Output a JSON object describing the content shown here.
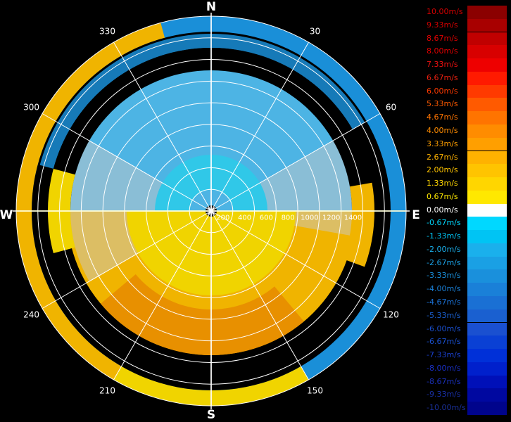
{
  "chart_data": {
    "type": "polar-heatmap",
    "title": "",
    "compass": {
      "N": "N",
      "E": "E",
      "S": "S",
      "W": "W"
    },
    "azimuth_labels": [
      "30",
      "60",
      "120",
      "150",
      "210",
      "240",
      "300",
      "330"
    ],
    "azimuth_values": [
      30,
      60,
      120,
      150,
      210,
      240,
      300,
      330
    ],
    "range_labels": [
      "200",
      "400",
      "600",
      "800",
      "1000",
      "1200",
      "1400"
    ],
    "range_values": [
      200,
      400,
      600,
      800,
      1000,
      1200,
      1400
    ],
    "range_max": 1800,
    "units": "m/s",
    "legend": {
      "labels": [
        "10.00m/s",
        "9.33m/s",
        "8.67m/s",
        "8.00m/s",
        "7.33m/s",
        "6.67m/s",
        "6.00m/s",
        "5.33m/s",
        "4.67m/s",
        "4.00m/s",
        "3.33m/s",
        "2.67m/s",
        "2.00m/s",
        "1.33m/s",
        "0.67m/s",
        "0.00m/s",
        "-0.67m/s",
        "-1.33m/s",
        "-2.00m/s",
        "-2.67m/s",
        "-3.33m/s",
        "-4.00m/s",
        "-4.67m/s",
        "-5.33m/s",
        "-6.00m/s",
        "-6.67m/s",
        "-7.33m/s",
        "-8.00m/s",
        "-8.67m/s",
        "-9.33m/s",
        "-10.00m/s"
      ],
      "colors": [
        "#8b0000",
        "#a80000",
        "#c00000",
        "#d80000",
        "#ee0000",
        "#ff1a00",
        "#ff3a00",
        "#ff5a00",
        "#ff7400",
        "#ff8c00",
        "#ff9f00",
        "#ffb200",
        "#ffc400",
        "#ffd600",
        "#ffe800",
        "#ffffff",
        "#00d8ff",
        "#00c4f4",
        "#1ab0ec",
        "#1aa0e4",
        "#1a90dc",
        "#1a80d8",
        "#1a70d4",
        "#1a60d0",
        "#1a50d0",
        "#0a40d4",
        "#0030d8",
        "#0020cc",
        "#0010b8",
        "#0008a0",
        "#00048c"
      ],
      "text_colors": [
        "#d40000",
        "#d40000",
        "#e00000",
        "#e00000",
        "#ee1010",
        "#ee2010",
        "#ff3a00",
        "#ff5a00",
        "#ff7400",
        "#ff8c00",
        "#ff9f00",
        "#ffb200",
        "#ffc400",
        "#ffd600",
        "#ffe800",
        "#ffffff",
        "#00d8ff",
        "#00c4f4",
        "#1ab0ec",
        "#1aa0e4",
        "#1a90dc",
        "#1a80d8",
        "#1a70d4",
        "#1a60d0",
        "#1a50d0",
        "#1a50d0",
        "#1a40d0",
        "#1a30c8",
        "#1a30b8",
        "#1a30a8",
        "#1a3098"
      ]
    },
    "grid": true,
    "ring_palette": {
      "outer_ring": "#1a8fd8",
      "north_field": "#4db4e4",
      "south_field": "#f0b400",
      "south_edge": "#e89000",
      "clutter": "#c8c8c8",
      "cyan_zone": "#30c8e8",
      "yellow_zone": "#f0d400"
    }
  }
}
